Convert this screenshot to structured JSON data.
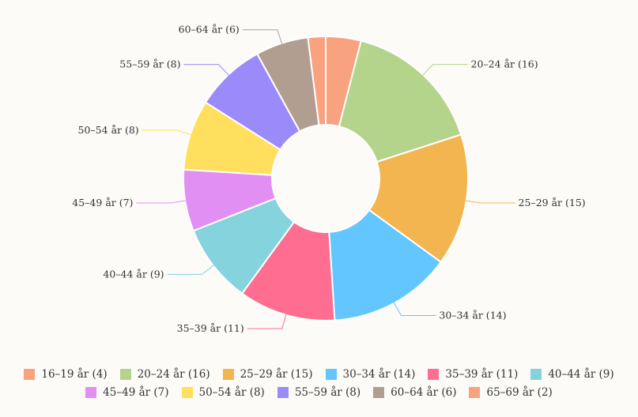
{
  "chart_data": {
    "type": "pie",
    "donut": true,
    "title": "",
    "categories": [
      "16–19 år",
      "20–24 år",
      "25–29 år",
      "30–34 år",
      "35–39 år",
      "40–44 år",
      "45–49 år",
      "50–54 år",
      "55–59 år",
      "60–64 år",
      "65–69 år"
    ],
    "values": [
      4,
      16,
      15,
      14,
      11,
      9,
      7,
      8,
      8,
      6,
      2
    ],
    "slice_labels": [
      "",
      "20–24 år (16)",
      "25–29 år (15)",
      "30–34 år (14)",
      "35–39 år (11)",
      "40–44 år (9)",
      "45–49 år (7)",
      "50–54 år (8)",
      "55–59 år (8)",
      "60–64 år (6)",
      ""
    ],
    "colors": [
      "#f9a27f",
      "#b4d38b",
      "#f3b54f",
      "#63c6fe",
      "#ff6d91",
      "#84d3dd",
      "#e28ff4",
      "#ffdf5d",
      "#9b8afa",
      "#b19e91",
      "#f9a27f"
    ],
    "legend_position": "bottom",
    "legend": [
      [
        "16–19 år (4)",
        "20–24 år (16)",
        "25–29 år (15)",
        "30–34 år (14)",
        "35–39 år (11)",
        "40–44 år (9)"
      ],
      [
        "45–49 år (7)",
        "50–54 år (8)",
        "55–59 år (8)",
        "60–64 år (6)",
        "65–69 år (2)"
      ]
    ]
  }
}
